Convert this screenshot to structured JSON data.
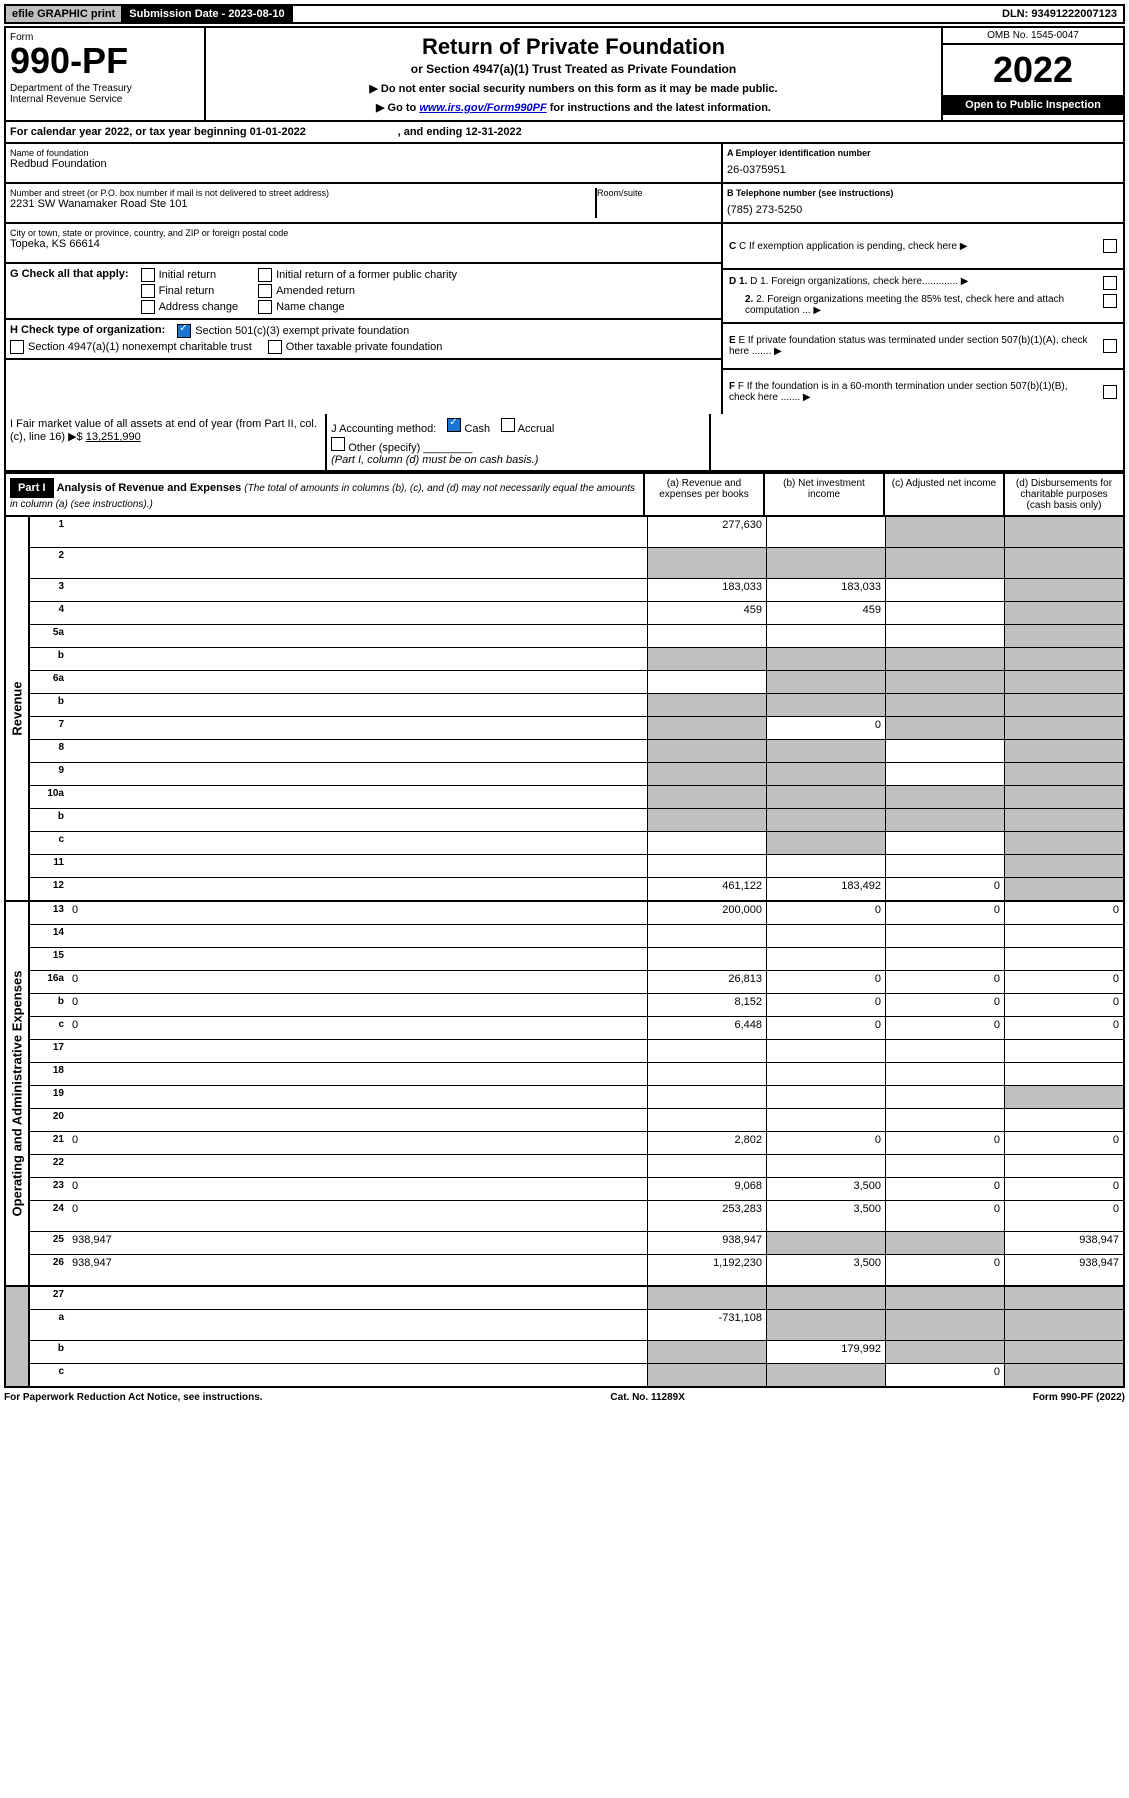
{
  "top_bar": {
    "left": "efile GRAPHIC print",
    "submission": "Submission Date - 2023-08-10",
    "dln": "DLN: 93491222007123"
  },
  "header": {
    "form_label": "Form",
    "form_no": "990-PF",
    "dept": "Department of the Treasury\nInternal Revenue Service",
    "title": "Return of Private Foundation",
    "subtitle": "or Section 4947(a)(1) Trust Treated as Private Foundation",
    "instr1": "▶ Do not enter social security numbers on this form as it may be made public.",
    "instr2_pre": "▶ Go to ",
    "instr2_link": "www.irs.gov/Form990PF",
    "instr2_post": " for instructions and the latest information.",
    "omb": "OMB No. 1545-0047",
    "year": "2022",
    "open": "Open to Public Inspection"
  },
  "cal_year": "For calendar year 2022, or tax year beginning 01-01-2022                              , and ending 12-31-2022",
  "foundation": {
    "name_lbl": "Name of foundation",
    "name": "Redbud Foundation",
    "addr_lbl": "Number and street (or P.O. box number if mail is not delivered to street address)",
    "addr": "2231 SW Wanamaker Road Ste 101",
    "room_lbl": "Room/suite",
    "city_lbl": "City or town, state or province, country, and ZIP or foreign postal code",
    "city": "Topeka, KS  66614"
  },
  "right_info": {
    "a_lbl": "A Employer identification number",
    "a_val": "26-0375951",
    "b_lbl": "B Telephone number (see instructions)",
    "b_val": "(785) 273-5250",
    "c": "C If exemption application is pending, check here",
    "d1": "D 1. Foreign organizations, check here.............",
    "d2": "2. Foreign organizations meeting the 85% test, check here and attach computation ...",
    "e": "E  If private foundation status was terminated under section 507(b)(1)(A), check here .......",
    "f": "F  If the foundation is in a 60-month termination under section 507(b)(1)(B), check here .......  ▶"
  },
  "g": {
    "label": "G Check all that apply:",
    "opts": [
      "Initial return",
      "Final return",
      "Address change",
      "Initial return of a former public charity",
      "Amended return",
      "Name change"
    ]
  },
  "h": {
    "label": "H Check type of organization:",
    "opt1": "Section 501(c)(3) exempt private foundation",
    "opt2": "Section 4947(a)(1) nonexempt charitable trust",
    "opt3": "Other taxable private foundation"
  },
  "i": {
    "label": "I Fair market value of all assets at end of year (from Part II, col. (c), line 16) ▶$",
    "val": "13,251,990"
  },
  "j": {
    "label": "J Accounting method:",
    "cash": "Cash",
    "accrual": "Accrual",
    "other": "Other (specify)",
    "note": "(Part I, column (d) must be on cash basis.)"
  },
  "part1": {
    "tag": "Part I",
    "title": "Analysis of Revenue and Expenses",
    "note": "(The total of amounts in columns (b), (c), and (d) may not necessarily equal the amounts in column (a) (see instructions).)",
    "col_a": "(a) Revenue and expenses per books",
    "col_b": "(b) Net investment income",
    "col_c": "(c) Adjusted net income",
    "col_d": "(d) Disbursements for charitable purposes (cash basis only)"
  },
  "vert_labels": {
    "revenue": "Revenue",
    "opex": "Operating and Administrative Expenses"
  },
  "lines": [
    {
      "n": "1",
      "d": "",
      "a": "277,630",
      "b": "",
      "c": "",
      "tall": true,
      "shade_b": false,
      "shade_c": true,
      "shade_d": true
    },
    {
      "n": "2",
      "d": "",
      "a": "",
      "b": "",
      "c": "",
      "tall": true,
      "shade_all": true
    },
    {
      "n": "3",
      "d": "",
      "a": "183,033",
      "b": "183,033",
      "c": "",
      "shade_d": true
    },
    {
      "n": "4",
      "d": "",
      "a": "459",
      "b": "459",
      "c": "",
      "shade_d": true
    },
    {
      "n": "5a",
      "d": "",
      "a": "",
      "b": "",
      "c": "",
      "shade_d": true
    },
    {
      "n": "b",
      "d": "",
      "a": "",
      "b": "",
      "c": "",
      "shade_all": true
    },
    {
      "n": "6a",
      "d": "",
      "a": "",
      "b": "",
      "c": "",
      "shade_b": true,
      "shade_c": true,
      "shade_d": true
    },
    {
      "n": "b",
      "d": "",
      "a": "",
      "b": "",
      "c": "",
      "shade_all": true
    },
    {
      "n": "7",
      "d": "",
      "a": "",
      "b": "0",
      "c": "",
      "shade_a": true,
      "shade_c": true,
      "shade_d": true
    },
    {
      "n": "8",
      "d": "",
      "a": "",
      "b": "",
      "c": "",
      "shade_a": true,
      "shade_b": true,
      "shade_d": true
    },
    {
      "n": "9",
      "d": "",
      "a": "",
      "b": "",
      "c": "",
      "shade_a": true,
      "shade_b": true,
      "shade_d": true
    },
    {
      "n": "10a",
      "d": "",
      "a": "",
      "b": "",
      "c": "",
      "shade_all": true
    },
    {
      "n": "b",
      "d": "",
      "a": "",
      "b": "",
      "c": "",
      "shade_all": true
    },
    {
      "n": "c",
      "d": "",
      "a": "",
      "b": "",
      "c": "",
      "shade_b": true,
      "shade_d": true
    },
    {
      "n": "11",
      "d": "",
      "a": "",
      "b": "",
      "c": "",
      "shade_d": true
    },
    {
      "n": "12",
      "d": "",
      "a": "461,122",
      "b": "183,492",
      "c": "0",
      "shade_d": true
    },
    {
      "n": "13",
      "d": "0",
      "a": "200,000",
      "b": "0",
      "c": "0",
      "sec": "op"
    },
    {
      "n": "14",
      "d": "",
      "a": "",
      "b": "",
      "c": "",
      "sec": "op"
    },
    {
      "n": "15",
      "d": "",
      "a": "",
      "b": "",
      "c": "",
      "sec": "op"
    },
    {
      "n": "16a",
      "d": "0",
      "a": "26,813",
      "b": "0",
      "c": "0",
      "sec": "op"
    },
    {
      "n": "b",
      "d": "0",
      "a": "8,152",
      "b": "0",
      "c": "0",
      "sec": "op"
    },
    {
      "n": "c",
      "d": "0",
      "a": "6,448",
      "b": "0",
      "c": "0",
      "sec": "op"
    },
    {
      "n": "17",
      "d": "",
      "a": "",
      "b": "",
      "c": "",
      "sec": "op"
    },
    {
      "n": "18",
      "d": "",
      "a": "",
      "b": "",
      "c": "",
      "sec": "op"
    },
    {
      "n": "19",
      "d": "",
      "a": "",
      "b": "",
      "c": "",
      "shade_d": true,
      "sec": "op"
    },
    {
      "n": "20",
      "d": "",
      "a": "",
      "b": "",
      "c": "",
      "sec": "op"
    },
    {
      "n": "21",
      "d": "0",
      "a": "2,802",
      "b": "0",
      "c": "0",
      "sec": "op"
    },
    {
      "n": "22",
      "d": "",
      "a": "",
      "b": "",
      "c": "",
      "sec": "op"
    },
    {
      "n": "23",
      "d": "0",
      "a": "9,068",
      "b": "3,500",
      "c": "0",
      "sec": "op"
    },
    {
      "n": "24",
      "d": "0",
      "a": "253,283",
      "b": "3,500",
      "c": "0",
      "tall": true,
      "sec": "op"
    },
    {
      "n": "25",
      "d": "938,947",
      "a": "938,947",
      "b": "",
      "c": "",
      "shade_b": true,
      "shade_c": true,
      "sec": "op"
    },
    {
      "n": "26",
      "d": "938,947",
      "a": "1,192,230",
      "b": "3,500",
      "c": "0",
      "tall": true,
      "sec": "op"
    },
    {
      "n": "27",
      "d": "",
      "a": "",
      "b": "",
      "c": "",
      "shade_all": true,
      "sec": "none"
    },
    {
      "n": "a",
      "d": "",
      "a": "-731,108",
      "b": "",
      "c": "",
      "shade_b": true,
      "shade_c": true,
      "shade_d": true,
      "tall": true,
      "sec": "none"
    },
    {
      "n": "b",
      "d": "",
      "a": "",
      "b": "179,992",
      "c": "",
      "shade_a": true,
      "shade_c": true,
      "shade_d": true,
      "sec": "none"
    },
    {
      "n": "c",
      "d": "",
      "a": "",
      "b": "",
      "c": "0",
      "shade_a": true,
      "shade_b": true,
      "shade_d": true,
      "sec": "none"
    }
  ],
  "footer": {
    "left": "For Paperwork Reduction Act Notice, see instructions.",
    "mid": "Cat. No. 11289X",
    "right": "Form 990-PF (2022)"
  }
}
